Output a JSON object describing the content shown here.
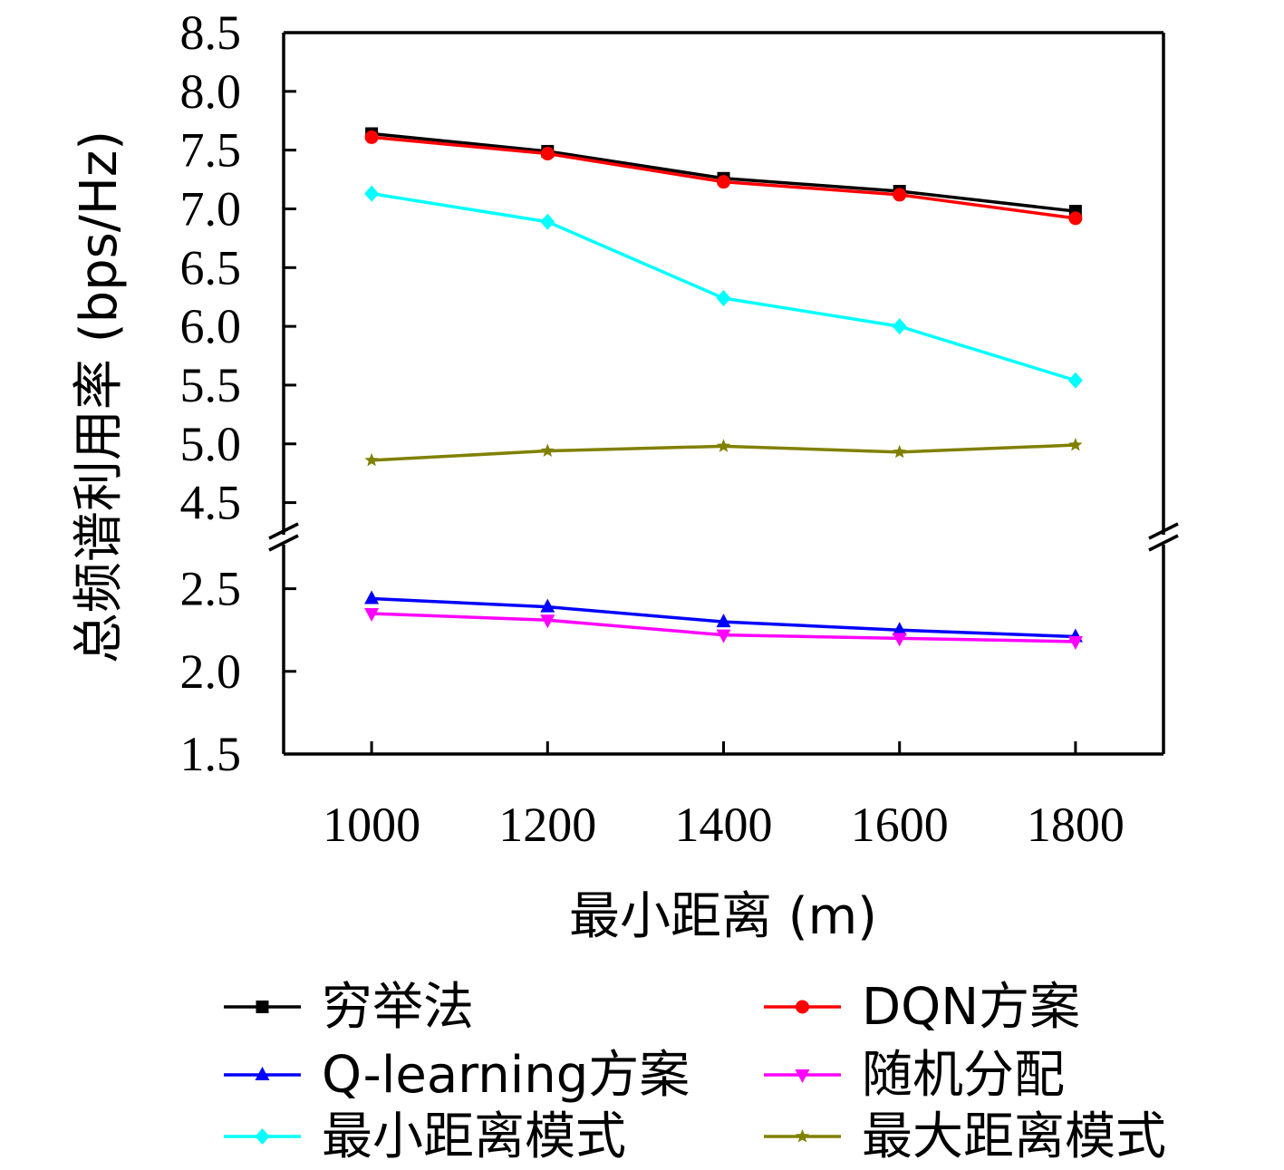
{
  "chart_data": {
    "type": "line",
    "title": "",
    "xlabel": "最小距离 (m)",
    "ylabel": "总频谱利用率 (bps/Hz)",
    "x": [
      1000,
      1200,
      1400,
      1600,
      1800
    ],
    "x_ticks": [
      "1000",
      "1200",
      "1400",
      "1600",
      "1800"
    ],
    "xlim": [
      900,
      1900
    ],
    "y_axis_broken": true,
    "y_segments": [
      {
        "range": [
          1.5,
          2.75
        ],
        "ticks": [
          "1.5",
          "2.0",
          "2.5"
        ]
      },
      {
        "range": [
          4.25,
          8.5
        ],
        "ticks": [
          "4.5",
          "5.0",
          "5.5",
          "6.0",
          "6.5",
          "7.0",
          "7.5",
          "8.0",
          "8.5"
        ]
      }
    ],
    "grid": false,
    "legend_position": "bottom",
    "series": [
      {
        "name": "穷举法",
        "color": "#000000",
        "marker": "square",
        "values": [
          7.64,
          7.49,
          7.26,
          7.15,
          6.98
        ]
      },
      {
        "name": "DQN方案",
        "color": "#ff0000",
        "marker": "circle",
        "values": [
          7.61,
          7.47,
          7.23,
          7.12,
          6.92
        ]
      },
      {
        "name": "Q-learning方案",
        "color": "#0000ff",
        "marker": "triangle-up",
        "values": [
          2.44,
          2.39,
          2.3,
          2.25,
          2.21
        ]
      },
      {
        "name": "随机分配",
        "color": "#ff00ff",
        "marker": "triangle-down",
        "values": [
          2.35,
          2.31,
          2.22,
          2.2,
          2.18
        ]
      },
      {
        "name": "最小距离模式",
        "color": "#00ffff",
        "marker": "diamond",
        "values": [
          7.13,
          6.89,
          6.24,
          6.0,
          5.54
        ]
      },
      {
        "name": "最大距离模式",
        "color": "#808000",
        "marker": "star",
        "values": [
          4.86,
          4.94,
          4.98,
          4.93,
          4.99
        ]
      }
    ]
  }
}
